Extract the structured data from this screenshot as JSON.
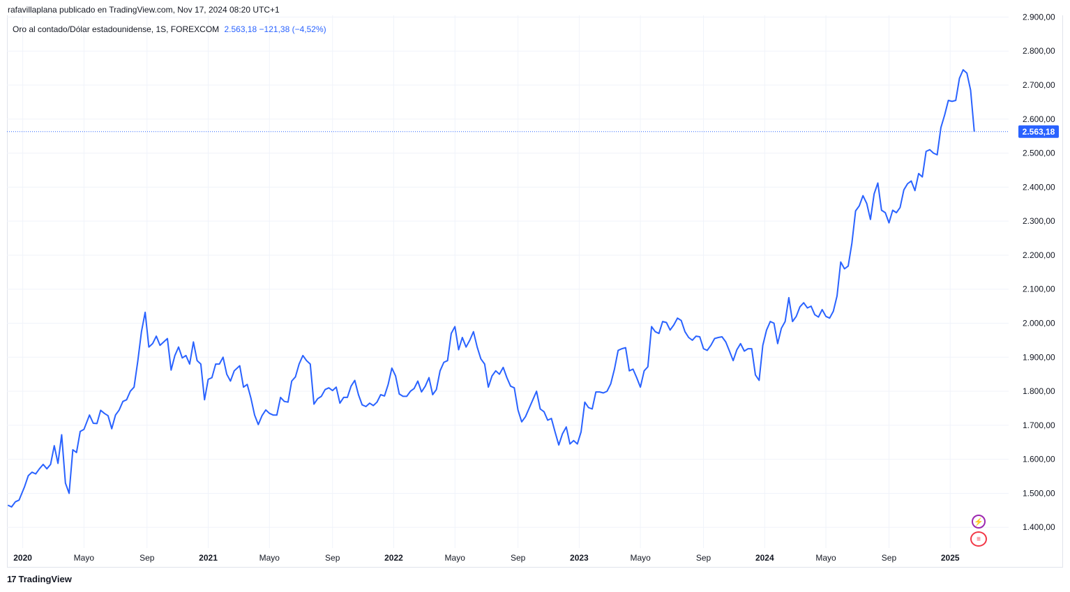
{
  "header": {
    "credit": "rafavillaplana publicado en TradingView.com, Nov 17, 2024 08:20 UTC+1"
  },
  "legend": {
    "symbol": "Oro al contado/Dólar estadounidense, 1S, FOREXCOM",
    "values": "2.563,18  −121,38 (−4,52%)"
  },
  "footer": {
    "brand": "TradingView",
    "brand_mark": "17"
  },
  "colors": {
    "line": "#2962ff",
    "grid": "#f0f3fa",
    "text": "#131722"
  },
  "icons": {
    "flash": "lightning-icon",
    "event": "us-flag-icon"
  },
  "chart_data": {
    "type": "line",
    "series": [
      {
        "values": [
          [
            2019.96,
            1465
          ],
          [
            2019.98,
            1460
          ],
          [
            2020.0,
            1475
          ],
          [
            2020.02,
            1480
          ],
          [
            2020.05,
            1520
          ],
          [
            2020.07,
            1552
          ],
          [
            2020.09,
            1562
          ],
          [
            2020.11,
            1557
          ],
          [
            2020.13,
            1572
          ],
          [
            2020.15,
            1585
          ],
          [
            2020.17,
            1572
          ],
          [
            2020.19,
            1585
          ],
          [
            2020.21,
            1640
          ],
          [
            2020.23,
            1588
          ],
          [
            2020.25,
            1672
          ],
          [
            2020.27,
            1530
          ],
          [
            2020.29,
            1500
          ],
          [
            2020.31,
            1628
          ],
          [
            2020.33,
            1620
          ],
          [
            2020.35,
            1682
          ],
          [
            2020.37,
            1688
          ],
          [
            2020.4,
            1730
          ],
          [
            2020.42,
            1706
          ],
          [
            2020.44,
            1705
          ],
          [
            2020.46,
            1744
          ],
          [
            2020.48,
            1735
          ],
          [
            2020.5,
            1728
          ],
          [
            2020.52,
            1690
          ],
          [
            2020.54,
            1730
          ],
          [
            2020.56,
            1745
          ],
          [
            2020.58,
            1770
          ],
          [
            2020.6,
            1775
          ],
          [
            2020.62,
            1800
          ],
          [
            2020.64,
            1812
          ],
          [
            2020.66,
            1888
          ],
          [
            2020.68,
            1975
          ],
          [
            2020.7,
            2032
          ],
          [
            2020.72,
            1930
          ],
          [
            2020.74,
            1940
          ],
          [
            2020.76,
            1962
          ],
          [
            2020.78,
            1935
          ],
          [
            2020.8,
            1945
          ],
          [
            2020.82,
            1955
          ],
          [
            2020.84,
            1862
          ],
          [
            2020.86,
            1905
          ],
          [
            2020.88,
            1930
          ],
          [
            2020.9,
            1898
          ],
          [
            2020.92,
            1905
          ],
          [
            2020.94,
            1880
          ],
          [
            2020.96,
            1945
          ],
          [
            2020.98,
            1890
          ],
          [
            2021.0,
            1880
          ],
          [
            2021.02,
            1775
          ],
          [
            2021.04,
            1835
          ],
          [
            2021.06,
            1840
          ],
          [
            2021.08,
            1880
          ],
          [
            2021.1,
            1880
          ],
          [
            2021.12,
            1900
          ],
          [
            2021.14,
            1850
          ],
          [
            2021.16,
            1830
          ],
          [
            2021.18,
            1860
          ],
          [
            2021.21,
            1875
          ],
          [
            2021.23,
            1812
          ],
          [
            2021.25,
            1820
          ],
          [
            2021.27,
            1780
          ],
          [
            2021.29,
            1730
          ],
          [
            2021.31,
            1702
          ],
          [
            2021.33,
            1728
          ],
          [
            2021.35,
            1745
          ],
          [
            2021.37,
            1735
          ],
          [
            2021.39,
            1730
          ],
          [
            2021.41,
            1730
          ],
          [
            2021.43,
            1782
          ],
          [
            2021.45,
            1770
          ],
          [
            2021.47,
            1768
          ],
          [
            2021.49,
            1830
          ],
          [
            2021.51,
            1842
          ],
          [
            2021.53,
            1880
          ],
          [
            2021.55,
            1905
          ],
          [
            2021.57,
            1890
          ],
          [
            2021.59,
            1880
          ],
          [
            2021.61,
            1762
          ],
          [
            2021.63,
            1778
          ],
          [
            2021.65,
            1785
          ],
          [
            2021.67,
            1805
          ],
          [
            2021.69,
            1810
          ],
          [
            2021.71,
            1802
          ],
          [
            2021.73,
            1812
          ],
          [
            2021.75,
            1765
          ],
          [
            2021.77,
            1782
          ],
          [
            2021.79,
            1782
          ],
          [
            2021.81,
            1815
          ],
          [
            2021.83,
            1832
          ],
          [
            2021.85,
            1790
          ],
          [
            2021.87,
            1760
          ],
          [
            2021.89,
            1755
          ],
          [
            2021.91,
            1765
          ],
          [
            2021.93,
            1758
          ],
          [
            2021.95,
            1768
          ],
          [
            2021.97,
            1790
          ],
          [
            2021.99,
            1786
          ],
          [
            2022.01,
            1820
          ],
          [
            2022.03,
            1868
          ],
          [
            2022.05,
            1845
          ],
          [
            2022.07,
            1792
          ],
          [
            2022.09,
            1785
          ],
          [
            2022.11,
            1785
          ],
          [
            2022.13,
            1800
          ],
          [
            2022.15,
            1808
          ],
          [
            2022.17,
            1830
          ],
          [
            2022.19,
            1798
          ],
          [
            2022.21,
            1815
          ],
          [
            2022.23,
            1840
          ],
          [
            2022.25,
            1790
          ],
          [
            2022.27,
            1805
          ],
          [
            2022.29,
            1860
          ],
          [
            2022.31,
            1885
          ],
          [
            2022.33,
            1890
          ],
          [
            2022.35,
            1970
          ],
          [
            2022.37,
            1990
          ],
          [
            2022.39,
            1922
          ],
          [
            2022.41,
            1958
          ],
          [
            2022.43,
            1930
          ],
          [
            2022.45,
            1950
          ],
          [
            2022.47,
            1975
          ],
          [
            2022.49,
            1930
          ],
          [
            2022.51,
            1895
          ],
          [
            2022.53,
            1880
          ],
          [
            2022.55,
            1812
          ],
          [
            2022.57,
            1845
          ],
          [
            2022.59,
            1860
          ],
          [
            2022.61,
            1850
          ],
          [
            2022.63,
            1870
          ],
          [
            2022.65,
            1840
          ],
          [
            2022.67,
            1815
          ],
          [
            2022.69,
            1810
          ],
          [
            2022.71,
            1745
          ],
          [
            2022.73,
            1710
          ],
          [
            2022.75,
            1725
          ],
          [
            2022.77,
            1750
          ],
          [
            2022.79,
            1775
          ],
          [
            2022.81,
            1800
          ],
          [
            2022.83,
            1748
          ],
          [
            2022.85,
            1740
          ],
          [
            2022.87,
            1715
          ],
          [
            2022.89,
            1720
          ],
          [
            2022.91,
            1680
          ],
          [
            2022.93,
            1642
          ],
          [
            2022.95,
            1675
          ],
          [
            2022.97,
            1695
          ],
          [
            2022.99,
            1645
          ],
          [
            2023.01,
            1655
          ],
          [
            2023.03,
            1645
          ],
          [
            2023.05,
            1680
          ],
          [
            2023.07,
            1768
          ],
          [
            2023.09,
            1752
          ],
          [
            2023.11,
            1748
          ],
          [
            2023.13,
            1798
          ],
          [
            2023.15,
            1798
          ],
          [
            2023.17,
            1795
          ],
          [
            2023.19,
            1800
          ],
          [
            2023.21,
            1822
          ],
          [
            2023.23,
            1865
          ],
          [
            2023.25,
            1920
          ],
          [
            2023.27,
            1925
          ],
          [
            2023.29,
            1928
          ],
          [
            2023.31,
            1860
          ],
          [
            2023.33,
            1865
          ],
          [
            2023.35,
            1840
          ],
          [
            2023.37,
            1812
          ],
          [
            2023.39,
            1860
          ],
          [
            2023.41,
            1872
          ],
          [
            2023.43,
            1990
          ],
          [
            2023.45,
            1975
          ],
          [
            2023.47,
            1970
          ],
          [
            2023.49,
            2005
          ],
          [
            2023.51,
            2002
          ],
          [
            2023.53,
            1980
          ],
          [
            2023.55,
            1995
          ],
          [
            2023.57,
            2015
          ],
          [
            2023.59,
            2008
          ],
          [
            2023.61,
            1975
          ],
          [
            2023.63,
            1958
          ],
          [
            2023.65,
            1950
          ],
          [
            2023.67,
            1962
          ],
          [
            2023.69,
            1960
          ],
          [
            2023.71,
            1925
          ],
          [
            2023.73,
            1920
          ],
          [
            2023.75,
            1935
          ],
          [
            2023.77,
            1955
          ],
          [
            2023.79,
            1958
          ],
          [
            2023.81,
            1960
          ],
          [
            2023.83,
            1945
          ],
          [
            2023.85,
            1918
          ],
          [
            2023.87,
            1890
          ],
          [
            2023.89,
            1922
          ],
          [
            2023.91,
            1940
          ],
          [
            2023.93,
            1918
          ],
          [
            2023.95,
            1925
          ],
          [
            2023.97,
            1925
          ],
          [
            2023.99,
            1848
          ],
          [
            2024.01,
            1832
          ],
          [
            2024.03,
            1935
          ],
          [
            2024.05,
            1980
          ],
          [
            2024.07,
            2005
          ],
          [
            2024.09,
            2000
          ],
          [
            2024.11,
            1940
          ],
          [
            2024.13,
            1985
          ],
          [
            2024.15,
            2005
          ],
          [
            2024.17,
            2075
          ],
          [
            2024.19,
            2005
          ],
          [
            2024.21,
            2020
          ],
          [
            2024.23,
            2048
          ],
          [
            2024.25,
            2060
          ],
          [
            2024.27,
            2045
          ],
          [
            2024.29,
            2050
          ],
          [
            2024.31,
            2025
          ],
          [
            2024.33,
            2018
          ],
          [
            2024.35,
            2040
          ],
          [
            2024.37,
            2020
          ],
          [
            2024.39,
            2015
          ],
          [
            2024.41,
            2035
          ],
          [
            2024.43,
            2080
          ],
          [
            2024.45,
            2180
          ],
          [
            2024.47,
            2160
          ],
          [
            2024.49,
            2168
          ],
          [
            2024.51,
            2235
          ],
          [
            2024.53,
            2330
          ],
          [
            2024.55,
            2345
          ],
          [
            2024.57,
            2375
          ],
          [
            2024.59,
            2352
          ],
          [
            2024.61,
            2305
          ],
          [
            2024.63,
            2380
          ],
          [
            2024.65,
            2412
          ],
          [
            2024.67,
            2332
          ],
          [
            2024.69,
            2325
          ],
          [
            2024.71,
            2295
          ],
          [
            2024.73,
            2332
          ],
          [
            2024.75,
            2325
          ],
          [
            2024.77,
            2340
          ],
          [
            2024.79,
            2392
          ],
          [
            2024.81,
            2410
          ],
          [
            2024.83,
            2418
          ],
          [
            2024.85,
            2390
          ],
          [
            2024.87,
            2440
          ],
          [
            2024.89,
            2430
          ],
          [
            2024.91,
            2505
          ],
          [
            2024.93,
            2510
          ],
          [
            2024.95,
            2500
          ],
          [
            2024.97,
            2495
          ],
          [
            2024.99,
            2575
          ],
          [
            2025.01,
            2612
          ],
          [
            2025.03,
            2655
          ],
          [
            2025.05,
            2652
          ],
          [
            2025.07,
            2655
          ],
          [
            2025.09,
            2720
          ],
          [
            2025.11,
            2745
          ],
          [
            2025.13,
            2735
          ],
          [
            2025.15,
            2685
          ],
          [
            2025.17,
            2563
          ]
        ]
      }
    ],
    "x_ticks": [
      {
        "label": "2020",
        "x": 2020.04,
        "bold": true
      },
      {
        "label": "Mayo",
        "x": 2020.37,
        "bold": false
      },
      {
        "label": "Sep",
        "x": 2020.71,
        "bold": false
      },
      {
        "label": "2021",
        "x": 2021.04,
        "bold": true
      },
      {
        "label": "Mayo",
        "x": 2021.37,
        "bold": false
      },
      {
        "label": "Sep",
        "x": 2021.71,
        "bold": false
      },
      {
        "label": "2022",
        "x": 2022.04,
        "bold": true
      },
      {
        "label": "Mayo",
        "x": 2022.37,
        "bold": false
      },
      {
        "label": "Sep",
        "x": 2022.71,
        "bold": false
      },
      {
        "label": "2023",
        "x": 2023.04,
        "bold": true
      },
      {
        "label": "Mayo",
        "x": 2023.37,
        "bold": false
      },
      {
        "label": "Sep",
        "x": 2023.71,
        "bold": false
      },
      {
        "label": "2024",
        "x": 2024.04,
        "bold": true
      },
      {
        "label": "Mayo",
        "x": 2024.37,
        "bold": false
      },
      {
        "label": "Sep",
        "x": 2024.71,
        "bold": false
      },
      {
        "label": "2025",
        "x": 2025.04,
        "bold": true
      }
    ],
    "y_ticks": [
      {
        "label": "1.400,00",
        "y": 1400
      },
      {
        "label": "1.500,00",
        "y": 1500
      },
      {
        "label": "1.600,00",
        "y": 1600
      },
      {
        "label": "1.700,00",
        "y": 1700
      },
      {
        "label": "1.800,00",
        "y": 1800
      },
      {
        "label": "1.900,00",
        "y": 1900
      },
      {
        "label": "2.000,00",
        "y": 2000
      },
      {
        "label": "2.100,00",
        "y": 2100
      },
      {
        "label": "2.200,00",
        "y": 2200
      },
      {
        "label": "2.300,00",
        "y": 2300
      },
      {
        "label": "2.400,00",
        "y": 2400
      },
      {
        "label": "2.500,00",
        "y": 2500
      },
      {
        "label": "2.600,00",
        "y": 2600
      },
      {
        "label": "2.700,00",
        "y": 2700
      },
      {
        "label": "2.800,00",
        "y": 2800
      },
      {
        "label": "2.900,00",
        "y": 2900
      }
    ],
    "last_price": {
      "label": "2.563,18",
      "y": 2563.18
    },
    "xlim": [
      2019.955,
      2025.355
    ],
    "ylim": [
      1339,
      2905
    ],
    "grid": true,
    "y_axis_side": "right"
  }
}
